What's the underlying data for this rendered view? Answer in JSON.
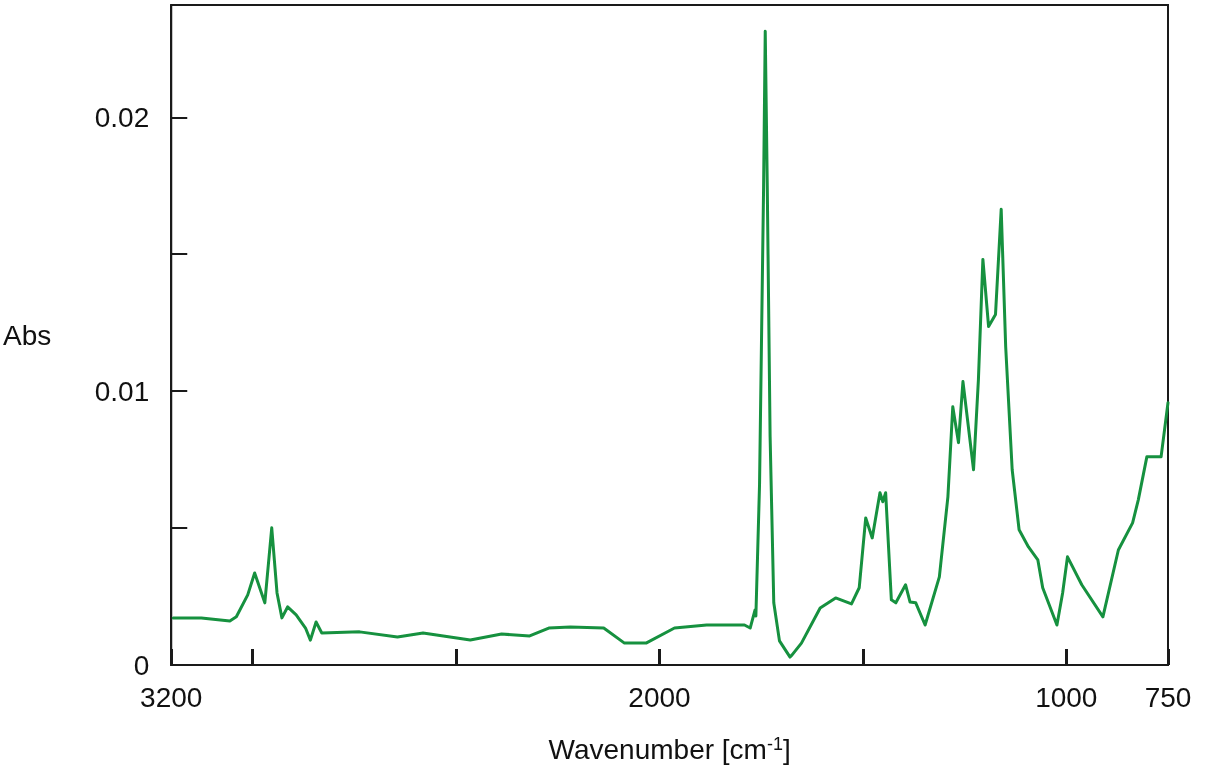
{
  "chart_data": {
    "type": "line",
    "xlabel": "Wavenumber [cm$^{-1}$]",
    "ylabel": "Abs",
    "xlim": [
      3200,
      750
    ],
    "ylim": [
      0,
      0.0241
    ],
    "xticks": [
      3200,
      {
        "value": 3000,
        "label": null
      },
      {
        "value": 2500,
        "label": null
      },
      2000,
      {
        "value": 1500,
        "label": null
      },
      1000,
      750
    ],
    "yticks": [
      0,
      {
        "value": 0.005,
        "label": null
      },
      0.01,
      {
        "value": 0.015,
        "label": null
      },
      0.02
    ],
    "series": [
      {
        "color": "#16913f",
        "x": [
          3195,
          3126,
          3056,
          3040,
          3012,
          2995,
          2970,
          2953,
          2940,
          2928,
          2914,
          2893,
          2870,
          2858,
          2844,
          2830,
          2737,
          2644,
          2581,
          2465,
          2388,
          2319,
          2272,
          2219,
          2137,
          2086,
          2033,
          1963,
          1884,
          1791,
          1777,
          1765,
          1763,
          1754,
          1744,
          1740,
          1735,
          1728,
          1719,
          1705,
          1679,
          1674,
          1651,
          1605,
          1567,
          1528,
          1509,
          1493,
          1477,
          1458,
          1451,
          1444,
          1430,
          1419,
          1395,
          1384,
          1370,
          1347,
          1312,
          1291,
          1279,
          1265,
          1254,
          1228,
          1216,
          1205,
          1191,
          1174,
          1160,
          1149,
          1133,
          1116,
          1093,
          1070,
          1058,
          1023,
          1009,
          997,
          962,
          910,
          872,
          837,
          823,
          802,
          767,
          750
        ],
        "values": [
          0.00172,
          0.00172,
          0.00161,
          0.00176,
          0.00256,
          0.00336,
          0.00227,
          0.00501,
          0.00263,
          0.00172,
          0.00212,
          0.00183,
          0.00135,
          0.00091,
          0.00157,
          0.00117,
          0.00121,
          0.00102,
          0.00117,
          0.00091,
          0.00113,
          0.00106,
          0.00135,
          0.00139,
          0.00135,
          0.0008,
          0.0008,
          0.00135,
          0.00146,
          0.00146,
          0.00135,
          0.00201,
          0.00179,
          0.00658,
          0.01748,
          0.02314,
          0.01748,
          0.00834,
          0.00227,
          0.00088,
          0.00029,
          0.00037,
          0.0008,
          0.00208,
          0.00245,
          0.00223,
          0.00282,
          0.00537,
          0.00464,
          0.00629,
          0.00596,
          0.00629,
          0.00238,
          0.00227,
          0.00293,
          0.0023,
          0.00227,
          0.00146,
          0.00322,
          0.00614,
          0.00943,
          0.00812,
          0.01035,
          0.00713,
          0.01042,
          0.01481,
          0.01236,
          0.0128,
          0.01664,
          0.01163,
          0.00713,
          0.00494,
          0.00431,
          0.00384,
          0.00282,
          0.00146,
          0.00263,
          0.00395,
          0.00293,
          0.00176,
          0.0042,
          0.00519,
          0.00603,
          0.0076,
          0.0076,
          0.00958
        ]
      }
    ]
  }
}
